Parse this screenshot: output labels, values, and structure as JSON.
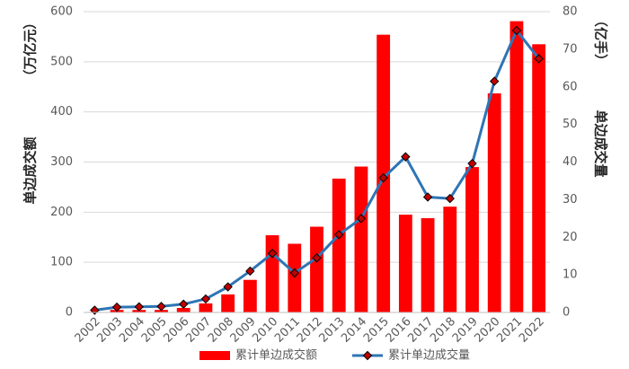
{
  "chart_data": {
    "type": "bar-line",
    "ylabel": "单边成交额",
    "ylabel_unit": "（万亿元）",
    "y2label": "单边成交量",
    "y2label_unit": "（亿手）",
    "categories": [
      "2002",
      "2003",
      "2004",
      "2005",
      "2006",
      "2007",
      "2008",
      "2009",
      "2010",
      "2011",
      "2012",
      "2013",
      "2014",
      "2015",
      "2016",
      "2017",
      "2018",
      "2019",
      "2020",
      "2021",
      "2022"
    ],
    "series": [
      {
        "name": "累计单边成交额",
        "type": "bar",
        "color": "#ff0000",
        "axis": "y",
        "values": [
          1,
          5,
          5,
          5,
          9,
          18,
          36,
          65,
          154,
          137,
          171,
          267,
          291,
          554,
          195,
          188,
          211,
          290,
          437,
          581,
          535
        ]
      },
      {
        "name": "累计单边成交量",
        "type": "line",
        "color": "#2e75b6",
        "marker_color": "#c00000",
        "axis": "y2",
        "values": [
          0.6,
          1.4,
          1.5,
          1.6,
          2.2,
          3.6,
          6.8,
          11,
          15.7,
          10.5,
          14.5,
          20.7,
          25,
          35.8,
          41.4,
          30.7,
          30.3,
          39.6,
          61.5,
          75,
          67.5
        ]
      }
    ],
    "ylim": [
      0,
      600
    ],
    "yticks": [
      0,
      100,
      200,
      300,
      400,
      500,
      600
    ],
    "y2lim": [
      0,
      80
    ],
    "y2ticks": [
      0,
      10,
      20,
      30,
      40,
      50,
      60,
      70,
      80
    ],
    "grid": true,
    "legend": "bottom"
  }
}
